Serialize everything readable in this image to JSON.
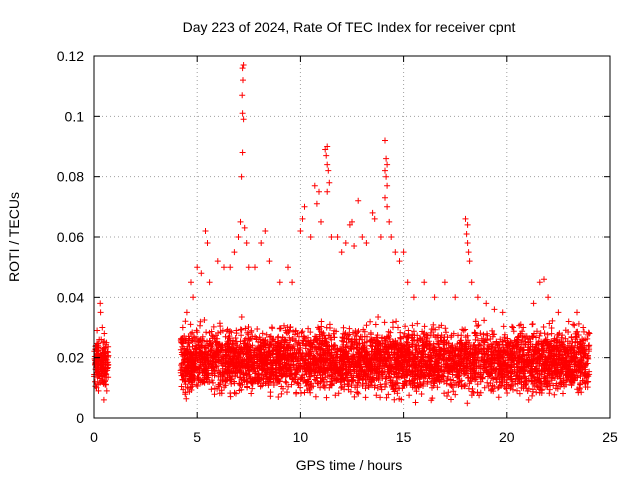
{
  "chart_data": {
    "type": "scatter",
    "title": "Day 223 of 2024, Rate Of TEC Index for receiver cpnt",
    "xlabel": "GPS time / hours",
    "ylabel": "ROTI / TECUs",
    "xlim": [
      0,
      25
    ],
    "ylim": [
      0,
      0.12
    ],
    "xticks": [
      0,
      5,
      10,
      15,
      20,
      25
    ],
    "xtick_labels": [
      "0",
      "5",
      "10",
      "15",
      "20",
      "25"
    ],
    "yticks": [
      0,
      0.02,
      0.04,
      0.06,
      0.08,
      0.1,
      0.12
    ],
    "ytick_labels": [
      "0",
      "0.02",
      "0.04",
      "0.06",
      "0.08",
      "0.1",
      "0.12"
    ],
    "grid": true,
    "marker": "+",
    "color": "#ff0000",
    "series": [
      {
        "name": "ROTI",
        "points": [
          [
            0.05,
            0.012
          ],
          [
            0.08,
            0.018
          ],
          [
            0.1,
            0.024
          ],
          [
            0.12,
            0.01
          ],
          [
            0.15,
            0.029
          ],
          [
            0.18,
            0.016
          ],
          [
            0.2,
            0.021
          ],
          [
            0.22,
            0.009
          ],
          [
            0.25,
            0.026
          ],
          [
            0.28,
            0.014
          ],
          [
            0.3,
            0.038
          ],
          [
            0.32,
            0.035
          ],
          [
            0.35,
            0.02
          ],
          [
            0.38,
            0.012
          ],
          [
            0.4,
            0.03
          ],
          [
            0.42,
            0.017
          ],
          [
            0.45,
            0.023
          ],
          [
            0.48,
            0.006
          ],
          [
            0.5,
            0.028
          ],
          [
            0.52,
            0.015
          ],
          [
            0.55,
            0.019
          ],
          [
            0.58,
            0.011
          ],
          [
            0.6,
            0.025
          ],
          [
            0.62,
            0.009
          ],
          [
            0.65,
            0.022
          ],
          [
            4.3,
            0.03
          ],
          [
            4.5,
            0.035
          ],
          [
            4.7,
            0.045
          ],
          [
            4.8,
            0.04
          ],
          [
            5.0,
            0.05
          ],
          [
            5.2,
            0.048
          ],
          [
            5.4,
            0.062
          ],
          [
            5.5,
            0.058
          ],
          [
            5.6,
            0.045
          ],
          [
            6.0,
            0.052
          ],
          [
            6.3,
            0.05
          ],
          [
            6.6,
            0.05
          ],
          [
            6.8,
            0.055
          ],
          [
            7.0,
            0.06
          ],
          [
            7.1,
            0.065
          ],
          [
            7.2,
            0.116
          ],
          [
            7.25,
            0.117
          ],
          [
            7.22,
            0.112
          ],
          [
            7.18,
            0.107
          ],
          [
            7.2,
            0.101
          ],
          [
            7.25,
            0.099
          ],
          [
            7.2,
            0.088
          ],
          [
            7.15,
            0.08
          ],
          [
            7.3,
            0.063
          ],
          [
            7.4,
            0.058
          ],
          [
            7.5,
            0.05
          ],
          [
            7.8,
            0.05
          ],
          [
            8.1,
            0.058
          ],
          [
            8.3,
            0.062
          ],
          [
            8.5,
            0.052
          ],
          [
            9.0,
            0.045
          ],
          [
            9.4,
            0.05
          ],
          [
            9.6,
            0.045
          ],
          [
            10.0,
            0.062
          ],
          [
            10.1,
            0.066
          ],
          [
            10.2,
            0.07
          ],
          [
            10.5,
            0.06
          ],
          [
            10.7,
            0.077
          ],
          [
            10.8,
            0.071
          ],
          [
            10.9,
            0.075
          ],
          [
            11.0,
            0.065
          ],
          [
            11.2,
            0.089
          ],
          [
            11.3,
            0.09
          ],
          [
            11.25,
            0.087
          ],
          [
            11.3,
            0.084
          ],
          [
            11.35,
            0.082
          ],
          [
            11.4,
            0.078
          ],
          [
            11.3,
            0.075
          ],
          [
            11.5,
            0.06
          ],
          [
            11.8,
            0.06
          ],
          [
            12.0,
            0.055
          ],
          [
            12.2,
            0.058
          ],
          [
            12.4,
            0.064
          ],
          [
            12.5,
            0.065
          ],
          [
            12.6,
            0.057
          ],
          [
            12.8,
            0.072
          ],
          [
            13.0,
            0.06
          ],
          [
            13.2,
            0.058
          ],
          [
            13.5,
            0.068
          ],
          [
            13.6,
            0.066
          ],
          [
            13.9,
            0.06
          ],
          [
            14.1,
            0.092
          ],
          [
            14.15,
            0.086
          ],
          [
            14.2,
            0.084
          ],
          [
            14.1,
            0.082
          ],
          [
            14.15,
            0.08
          ],
          [
            14.2,
            0.077
          ],
          [
            14.1,
            0.073
          ],
          [
            14.2,
            0.07
          ],
          [
            14.3,
            0.065
          ],
          [
            14.4,
            0.06
          ],
          [
            14.6,
            0.055
          ],
          [
            14.8,
            0.052
          ],
          [
            15.0,
            0.055
          ],
          [
            15.2,
            0.045
          ],
          [
            15.5,
            0.04
          ],
          [
            16.0,
            0.045
          ],
          [
            16.5,
            0.04
          ],
          [
            17.0,
            0.045
          ],
          [
            17.5,
            0.04
          ],
          [
            18.0,
            0.066
          ],
          [
            18.1,
            0.064
          ],
          [
            18.05,
            0.061
          ],
          [
            18.1,
            0.058
          ],
          [
            18.15,
            0.055
          ],
          [
            18.2,
            0.052
          ],
          [
            18.3,
            0.045
          ],
          [
            18.6,
            0.04
          ],
          [
            19.0,
            0.038
          ],
          [
            19.4,
            0.036
          ],
          [
            19.8,
            0.035
          ],
          [
            20.3,
            0.03
          ],
          [
            20.8,
            0.03
          ],
          [
            21.3,
            0.038
          ],
          [
            21.6,
            0.045
          ],
          [
            21.8,
            0.046
          ],
          [
            22.0,
            0.04
          ],
          [
            22.5,
            0.035
          ],
          [
            23.0,
            0.032
          ],
          [
            23.4,
            0.035
          ],
          [
            23.7,
            0.03
          ],
          [
            24.0,
            0.028
          ]
        ],
        "bands": [
          {
            "x": [
              0.0,
              0.7
            ],
            "y": [
              0.008,
              0.028
            ]
          },
          {
            "x": [
              4.2,
              24.0
            ],
            "y": [
              0.004,
              0.034
            ]
          }
        ]
      }
    ]
  }
}
